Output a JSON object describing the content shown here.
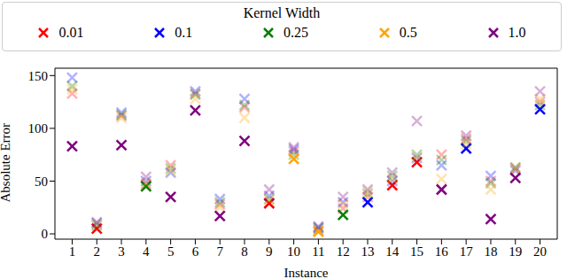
{
  "chart_data": {
    "type": "scatter",
    "legend_title": "Kernel Width",
    "xlabel": "Instance",
    "ylabel": "Absolute Error",
    "x": [
      1,
      2,
      3,
      4,
      5,
      6,
      7,
      8,
      9,
      10,
      11,
      12,
      13,
      14,
      15,
      16,
      17,
      18,
      19,
      20
    ],
    "xlim": [
      0.3,
      20.7
    ],
    "xticks": [
      1,
      2,
      3,
      4,
      5,
      6,
      7,
      8,
      9,
      10,
      11,
      12,
      13,
      14,
      15,
      16,
      17,
      18,
      19,
      20
    ],
    "ylim": [
      -5,
      157
    ],
    "yticks": [
      0,
      50,
      100,
      150
    ],
    "grid": false,
    "legend": "top",
    "marker": "x",
    "series": [
      {
        "name": "0.01",
        "color": "#ff0000",
        "values": [
          133,
          5,
          112,
          47,
          65,
          133,
          28,
          120,
          29,
          78,
          3,
          24,
          35,
          46,
          68,
          75,
          90,
          50,
          62,
          125
        ]
      },
      {
        "name": "0.1",
        "color": "#0000ff",
        "values": [
          148,
          10,
          115,
          50,
          58,
          135,
          33,
          128,
          36,
          80,
          6,
          30,
          30,
          50,
          72,
          65,
          81,
          55,
          60,
          118
        ]
      },
      {
        "name": "0.25",
        "color": "#008000",
        "values": [
          140,
          8,
          113,
          45,
          62,
          132,
          30,
          122,
          33,
          75,
          5,
          18,
          38,
          55,
          75,
          70,
          88,
          48,
          63,
          122
        ]
      },
      {
        "name": "0.5",
        "color": "#ffa500",
        "values": [
          137,
          9,
          110,
          48,
          60,
          128,
          25,
          110,
          32,
          71,
          2,
          28,
          40,
          52,
          73,
          52,
          85,
          42,
          61,
          128
        ]
      },
      {
        "name": "1.0",
        "color": "#800080",
        "values": [
          83,
          11,
          84,
          54,
          35,
          117,
          17,
          88,
          42,
          82,
          7,
          35,
          42,
          58,
          107,
          42,
          93,
          14,
          53,
          135
        ]
      }
    ]
  }
}
